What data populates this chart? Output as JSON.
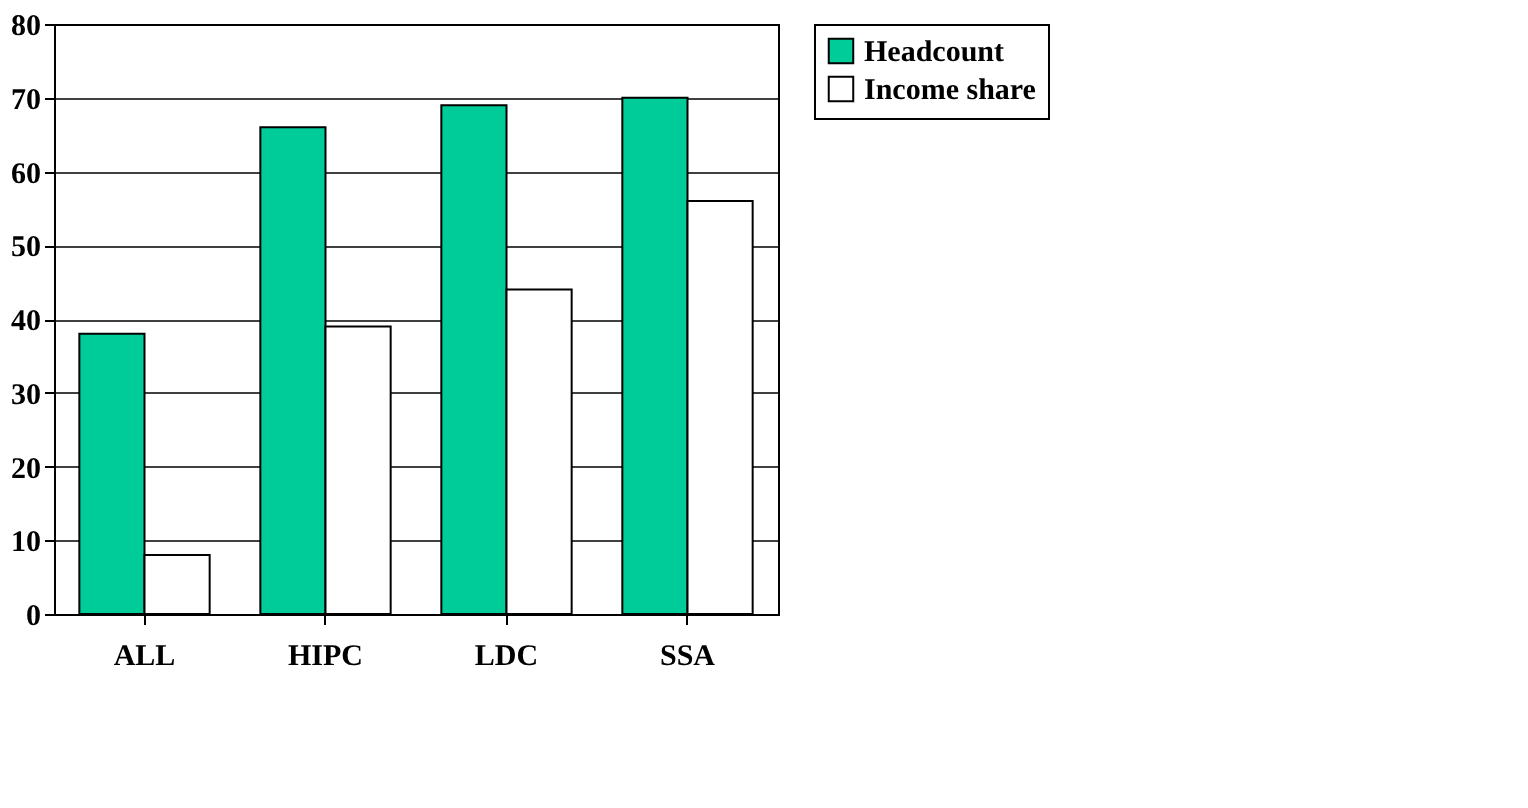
{
  "chart_data": {
    "type": "bar",
    "categories": [
      "ALL",
      "HIPC",
      "LDC",
      "SSA"
    ],
    "series": [
      {
        "name": "Headcount",
        "color": "#00cc99",
        "values": [
          38,
          66,
          69,
          70
        ]
      },
      {
        "name": "Income share",
        "color": "#ffffff",
        "values": [
          8,
          39,
          44,
          56
        ]
      }
    ],
    "ylim": [
      0,
      80
    ],
    "yticks": [
      0,
      10,
      20,
      30,
      40,
      50,
      60,
      70,
      80
    ],
    "grid": "y",
    "legend": "right"
  }
}
